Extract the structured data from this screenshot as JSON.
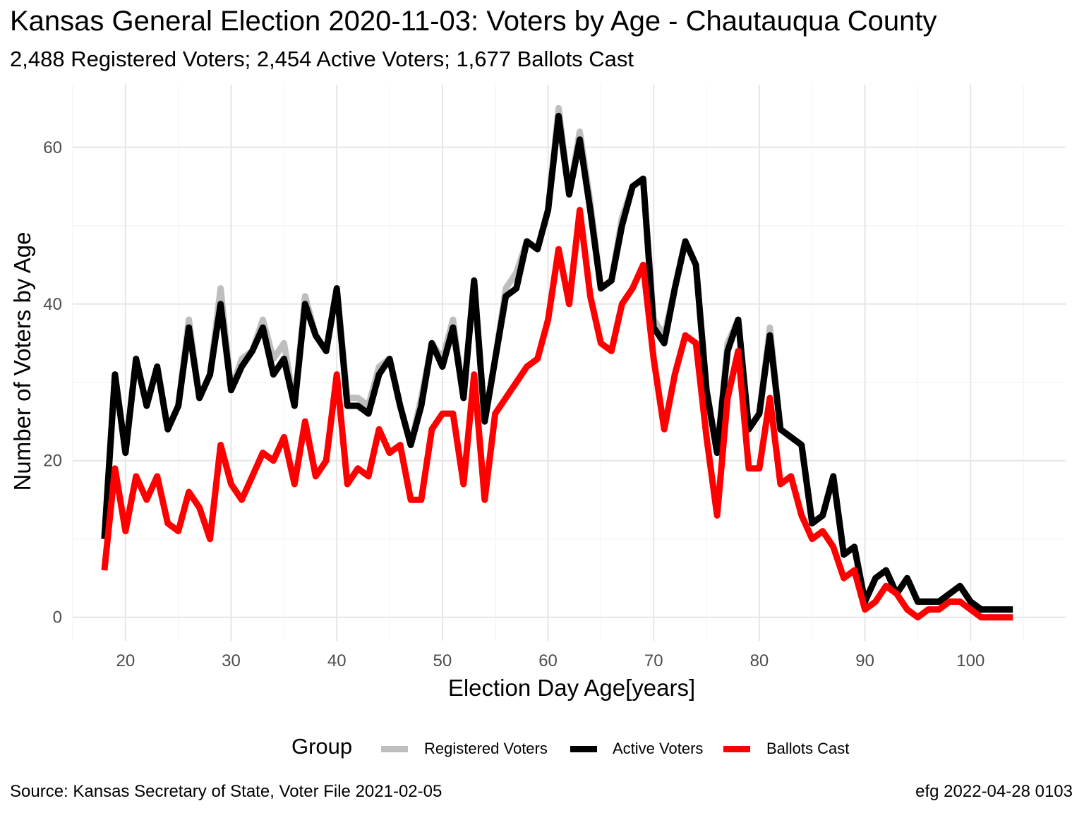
{
  "title": "Kansas General Election 2020-11-03:  Voters by Age - Chautauqua County",
  "subtitle": "2,488 Registered Voters; 2,454 Active Voters; 1,677 Ballots Cast",
  "caption_left": "Source:  Kansas Secretary of State, Voter File  2021-02-05",
  "caption_right": "efg 2022-04-28 0103",
  "legend": {
    "title": "Group",
    "items": [
      {
        "label": "Registered Voters",
        "color": "#bebebe"
      },
      {
        "label": "Active Voters",
        "color": "#000000"
      },
      {
        "label": "Ballots Cast",
        "color": "#ff0000"
      }
    ]
  },
  "chart_data": {
    "type": "line",
    "xlabel": "Election Day Age[years]",
    "ylabel": "Number of Voters by Age",
    "xlim": [
      15,
      109
    ],
    "ylim": [
      -3,
      68
    ],
    "x_ticks": [
      20,
      30,
      40,
      50,
      60,
      70,
      80,
      90,
      100
    ],
    "y_ticks": [
      0,
      20,
      40,
      60
    ],
    "grid": true,
    "legend_position": "bottom",
    "x": [
      18,
      19,
      20,
      21,
      22,
      23,
      24,
      25,
      26,
      27,
      28,
      29,
      30,
      31,
      32,
      33,
      34,
      35,
      36,
      37,
      38,
      39,
      40,
      41,
      42,
      43,
      44,
      45,
      46,
      47,
      48,
      49,
      50,
      51,
      52,
      53,
      54,
      55,
      56,
      57,
      58,
      59,
      60,
      61,
      62,
      63,
      64,
      65,
      66,
      67,
      68,
      69,
      70,
      71,
      72,
      73,
      74,
      75,
      76,
      77,
      78,
      79,
      80,
      81,
      82,
      83,
      84,
      85,
      86,
      87,
      88,
      89,
      90,
      91,
      92,
      93,
      94,
      95,
      96,
      97,
      98,
      99,
      100,
      101,
      102,
      103,
      104
    ],
    "series": [
      {
        "name": "Registered Voters",
        "color": "#bebebe",
        "values": [
          10,
          31,
          21,
          33,
          27,
          32,
          24,
          27,
          38,
          28,
          31,
          42,
          29,
          33,
          34,
          38,
          33,
          35,
          27,
          41,
          36,
          34,
          42,
          28,
          28,
          27,
          32,
          33,
          27,
          22,
          28,
          35,
          33,
          38,
          28,
          43,
          25,
          33,
          42,
          44,
          48,
          47,
          52,
          65,
          54,
          62,
          53,
          42,
          43,
          51,
          55,
          56,
          38,
          36,
          42,
          48,
          45,
          29,
          21,
          35,
          38,
          24,
          26,
          37,
          24,
          23,
          22,
          12,
          13,
          18,
          8,
          9,
          2,
          5,
          6,
          3,
          5,
          2,
          2,
          2,
          3,
          4,
          2,
          1,
          1,
          1,
          1
        ]
      },
      {
        "name": "Active Voters",
        "color": "#000000",
        "values": [
          10,
          31,
          21,
          33,
          27,
          32,
          24,
          27,
          37,
          28,
          31,
          40,
          29,
          32,
          34,
          37,
          31,
          33,
          27,
          40,
          36,
          34,
          42,
          27,
          27,
          26,
          31,
          33,
          27,
          22,
          27,
          35,
          32,
          37,
          28,
          43,
          25,
          33,
          41,
          42,
          48,
          47,
          52,
          64,
          54,
          61,
          52,
          42,
          43,
          50,
          55,
          56,
          37,
          35,
          42,
          48,
          45,
          29,
          21,
          34,
          38,
          24,
          26,
          36,
          24,
          23,
          22,
          12,
          13,
          18,
          8,
          9,
          2,
          5,
          6,
          3,
          5,
          2,
          2,
          2,
          3,
          4,
          2,
          1,
          1,
          1,
          1
        ]
      },
      {
        "name": "Ballots Cast",
        "color": "#ff0000",
        "values": [
          6,
          19,
          11,
          18,
          15,
          18,
          12,
          11,
          16,
          14,
          10,
          22,
          17,
          15,
          18,
          21,
          20,
          23,
          17,
          25,
          18,
          20,
          31,
          17,
          19,
          18,
          24,
          21,
          22,
          15,
          15,
          24,
          26,
          26,
          17,
          31,
          15,
          26,
          28,
          30,
          32,
          33,
          38,
          47,
          40,
          52,
          41,
          35,
          34,
          40,
          42,
          45,
          33,
          24,
          31,
          36,
          35,
          23,
          13,
          28,
          34,
          19,
          19,
          28,
          17,
          18,
          13,
          10,
          11,
          9,
          5,
          6,
          1,
          2,
          4,
          3,
          1,
          0,
          1,
          1,
          2,
          2,
          1,
          0,
          0,
          0,
          0
        ]
      }
    ]
  }
}
